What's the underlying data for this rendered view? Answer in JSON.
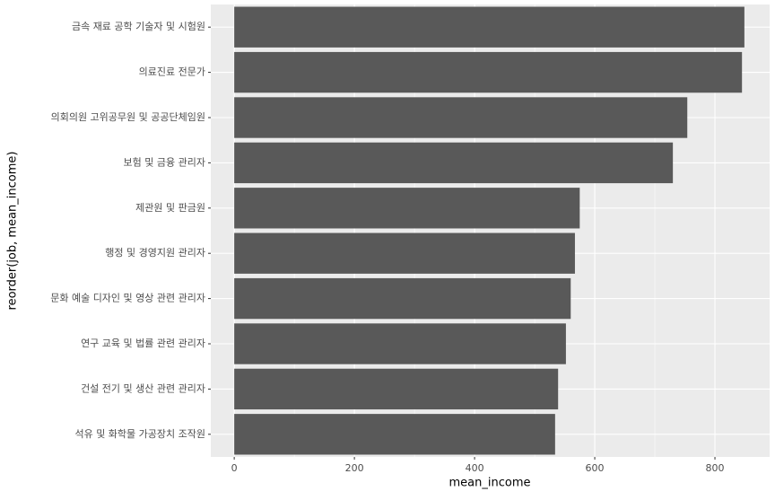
{
  "chart_data": {
    "type": "hbar",
    "categories": [
      "금속 재료 공학 기술자 및 시험원",
      "의료진료 전문가",
      "의회의원 고위공무원 및 공공단체임원",
      "보험 및 금융 관리자",
      "제관원 및 판금원",
      "행정 및 경영지원 관리자",
      "문화 예술 디자인 및 영상 관련 관리자",
      "연구 교육 및 법률 관련 관리자",
      "건설 전기 및 생산 관련 관리자",
      "석유 및 화학물 가공장치 조작원"
    ],
    "values": [
      849,
      845,
      754,
      730,
      575,
      567,
      560,
      552,
      539,
      534
    ],
    "color": "#595959",
    "x_label": "mean_income",
    "y_label": "reorder(job, mean_income)",
    "xlim": [
      -39,
      891
    ],
    "xticks": [
      0,
      200,
      400,
      600,
      800
    ],
    "grid": true
  }
}
